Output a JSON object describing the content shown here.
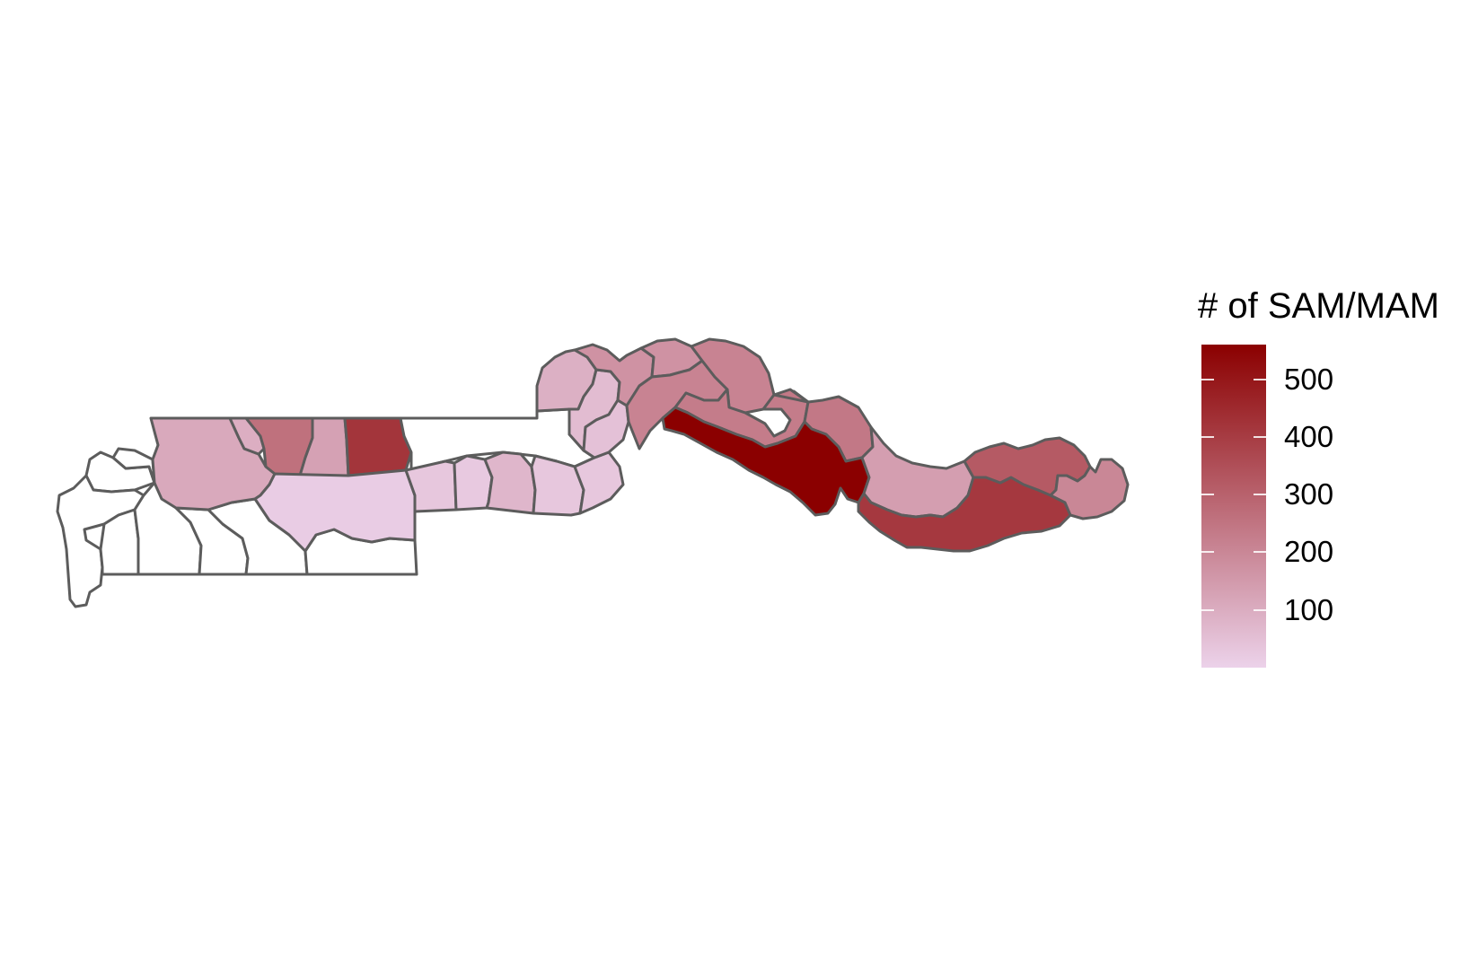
{
  "legend": {
    "title": "# of SAM/MAM",
    "min": 0,
    "max": 560,
    "ticks": [
      {
        "value": 100,
        "label": "100"
      },
      {
        "value": 200,
        "label": "200"
      },
      {
        "value": 300,
        "label": "300"
      },
      {
        "value": 400,
        "label": "400"
      },
      {
        "value": 500,
        "label": "500"
      }
    ],
    "color_low": "#ecd2ea",
    "color_high": "#8b0000"
  },
  "map_data": {
    "type": "choropleth",
    "measure": "# of SAM/MAM",
    "no_data_fill": "#ffffff",
    "border_color": "#5c5c5c",
    "regions": [
      {
        "id": "west-coast-1",
        "value": null
      },
      {
        "id": "west-coast-2",
        "value": null
      },
      {
        "id": "west-coast-3",
        "value": null
      },
      {
        "id": "west-south-1",
        "value": null
      },
      {
        "id": "west-south-2",
        "value": null
      },
      {
        "id": "west-south-3",
        "value": null
      },
      {
        "id": "west-south-4",
        "value": null
      },
      {
        "id": "west-south-5",
        "value": null
      },
      {
        "id": "west-north-1",
        "value": 110
      },
      {
        "id": "west-north-2",
        "value": 95
      },
      {
        "id": "west-north-3",
        "value": 260
      },
      {
        "id": "west-north-4",
        "value": 130
      },
      {
        "id": "west-north-5",
        "value": 420
      },
      {
        "id": "lower-river-south",
        "value": 15
      },
      {
        "id": "central-south-1",
        "value": 30
      },
      {
        "id": "central-south-2",
        "value": 25
      },
      {
        "id": "central-south-3",
        "value": 75
      },
      {
        "id": "central-south-4",
        "value": 30
      },
      {
        "id": "central-south-5",
        "value": 30
      },
      {
        "id": "central-north-1",
        "value": 90
      },
      {
        "id": "central-north-2",
        "value": 60
      },
      {
        "id": "central-north-3",
        "value": 45
      },
      {
        "id": "central-north-4",
        "value": 170
      },
      {
        "id": "central-north-5",
        "value": 170
      },
      {
        "id": "mid-river-1",
        "value": 210
      },
      {
        "id": "mid-river-2",
        "value": 210
      },
      {
        "id": "mid-river-3",
        "value": 230
      },
      {
        "id": "mid-river-4",
        "value": 240
      },
      {
        "id": "mid-river-5",
        "value": 560
      },
      {
        "id": "upper-river-1",
        "value": 140
      },
      {
        "id": "upper-river-2",
        "value": 410
      },
      {
        "id": "upper-river-3",
        "value": 320
      },
      {
        "id": "upper-river-4",
        "value": 200
      }
    ]
  }
}
